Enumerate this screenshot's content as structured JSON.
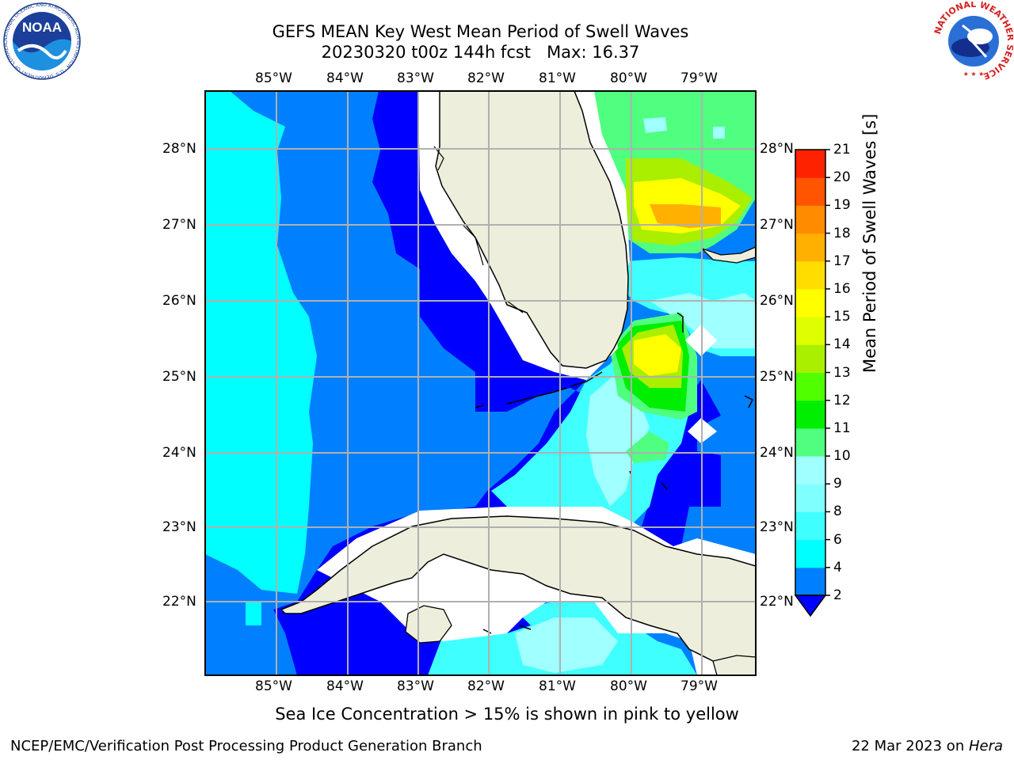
{
  "title": {
    "line1": "GEFS MEAN Key West Mean Period of Swell Waves",
    "line2": "20230320 t00z 144h fcst   Max: 16.37"
  },
  "map": {
    "lon_labels": [
      "85°W",
      "84°W",
      "83°W",
      "82°W",
      "81°W",
      "80°W",
      "79°W"
    ],
    "lat_labels": [
      "28°N",
      "27°N",
      "26°N",
      "25°N",
      "24°N",
      "23°N",
      "22°N"
    ],
    "colors": {
      "water_deep": "#0000ff",
      "water_mid": "#0080ff",
      "water_cyan": "#00ffff",
      "water_light": "#40ffff",
      "water_pale": "#a0ffff",
      "land": "#eeeedd",
      "grid": "#b0b0b0"
    }
  },
  "colorbar": {
    "label": "Mean Period of Swell Waves [s]",
    "ticks": [
      "2",
      "4",
      "6",
      "8",
      "9",
      "10",
      "11",
      "12",
      "13",
      "14",
      "15",
      "16",
      "17",
      "18",
      "19",
      "20",
      "21"
    ],
    "colors": [
      "#0080ff",
      "#00ffff",
      "#40ffff",
      "#80ffff",
      "#a0ffff",
      "#50ff80",
      "#00ee00",
      "#50ff00",
      "#aaee00",
      "#ddff00",
      "#ffff00",
      "#ffdd00",
      "#ffb000",
      "#ff8c00",
      "#ff5500",
      "#ff2200",
      "#ff0000"
    ],
    "under_color": "#0000ff"
  },
  "caption": "Sea Ice Concentration > 15% is shown in pink to yellow",
  "footer": {
    "left": "NCEP/EMC/Verification Post Processing Product Generation Branch",
    "date": "22 Mar 2023 on ",
    "machine": "Hera"
  },
  "logos": {
    "left": "NOAA",
    "left_ring": "NATIONAL OCEANIC AND ATMOSPHERIC ADMINISTRATION · U.S. DEPARTMENT OF COMMERCE",
    "right_ring": "NATIONAL WEATHER SERVICE"
  }
}
